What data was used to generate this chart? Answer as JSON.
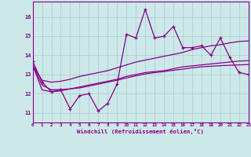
{
  "x": [
    0,
    1,
    2,
    3,
    4,
    5,
    6,
    7,
    8,
    9,
    10,
    11,
    12,
    13,
    14,
    15,
    16,
    17,
    18,
    19,
    20,
    21,
    22,
    23
  ],
  "y_main": [
    13.7,
    12.6,
    12.1,
    12.2,
    11.2,
    11.9,
    12.0,
    11.1,
    11.5,
    12.5,
    15.1,
    14.9,
    16.4,
    14.9,
    15.0,
    15.5,
    14.4,
    14.4,
    14.5,
    14.0,
    14.9,
    13.9,
    13.1,
    13.0
  ],
  "y_trend_upper": [
    13.5,
    12.7,
    12.6,
    12.65,
    12.75,
    12.9,
    13.0,
    13.1,
    13.2,
    13.35,
    13.5,
    13.65,
    13.75,
    13.85,
    13.95,
    14.05,
    14.15,
    14.3,
    14.4,
    14.5,
    14.55,
    14.65,
    14.72,
    14.75
  ],
  "y_trend_lower": [
    13.5,
    12.2,
    12.1,
    12.15,
    12.25,
    12.35,
    12.45,
    12.55,
    12.65,
    12.75,
    12.9,
    13.0,
    13.1,
    13.15,
    13.2,
    13.3,
    13.4,
    13.45,
    13.5,
    13.55,
    13.6,
    13.65,
    13.7,
    13.72
  ],
  "y_smooth": [
    13.5,
    12.45,
    12.2,
    12.22,
    12.25,
    12.3,
    12.4,
    12.5,
    12.6,
    12.7,
    12.82,
    12.93,
    13.03,
    13.1,
    13.15,
    13.22,
    13.28,
    13.35,
    13.4,
    13.43,
    13.46,
    13.48,
    13.5,
    13.52
  ],
  "line_color": "#880088",
  "bg_color": "#cce8e8",
  "grid_color": "#aacccc",
  "xlabel": "Windchill (Refroidissement éolien,°C)",
  "ylim": [
    10.5,
    16.8
  ],
  "xlim": [
    0,
    23
  ],
  "yticks": [
    11,
    12,
    13,
    14,
    15,
    16
  ],
  "xticks": [
    0,
    1,
    2,
    3,
    4,
    5,
    6,
    7,
    8,
    9,
    10,
    11,
    12,
    13,
    14,
    15,
    16,
    17,
    18,
    19,
    20,
    21,
    22,
    23
  ]
}
